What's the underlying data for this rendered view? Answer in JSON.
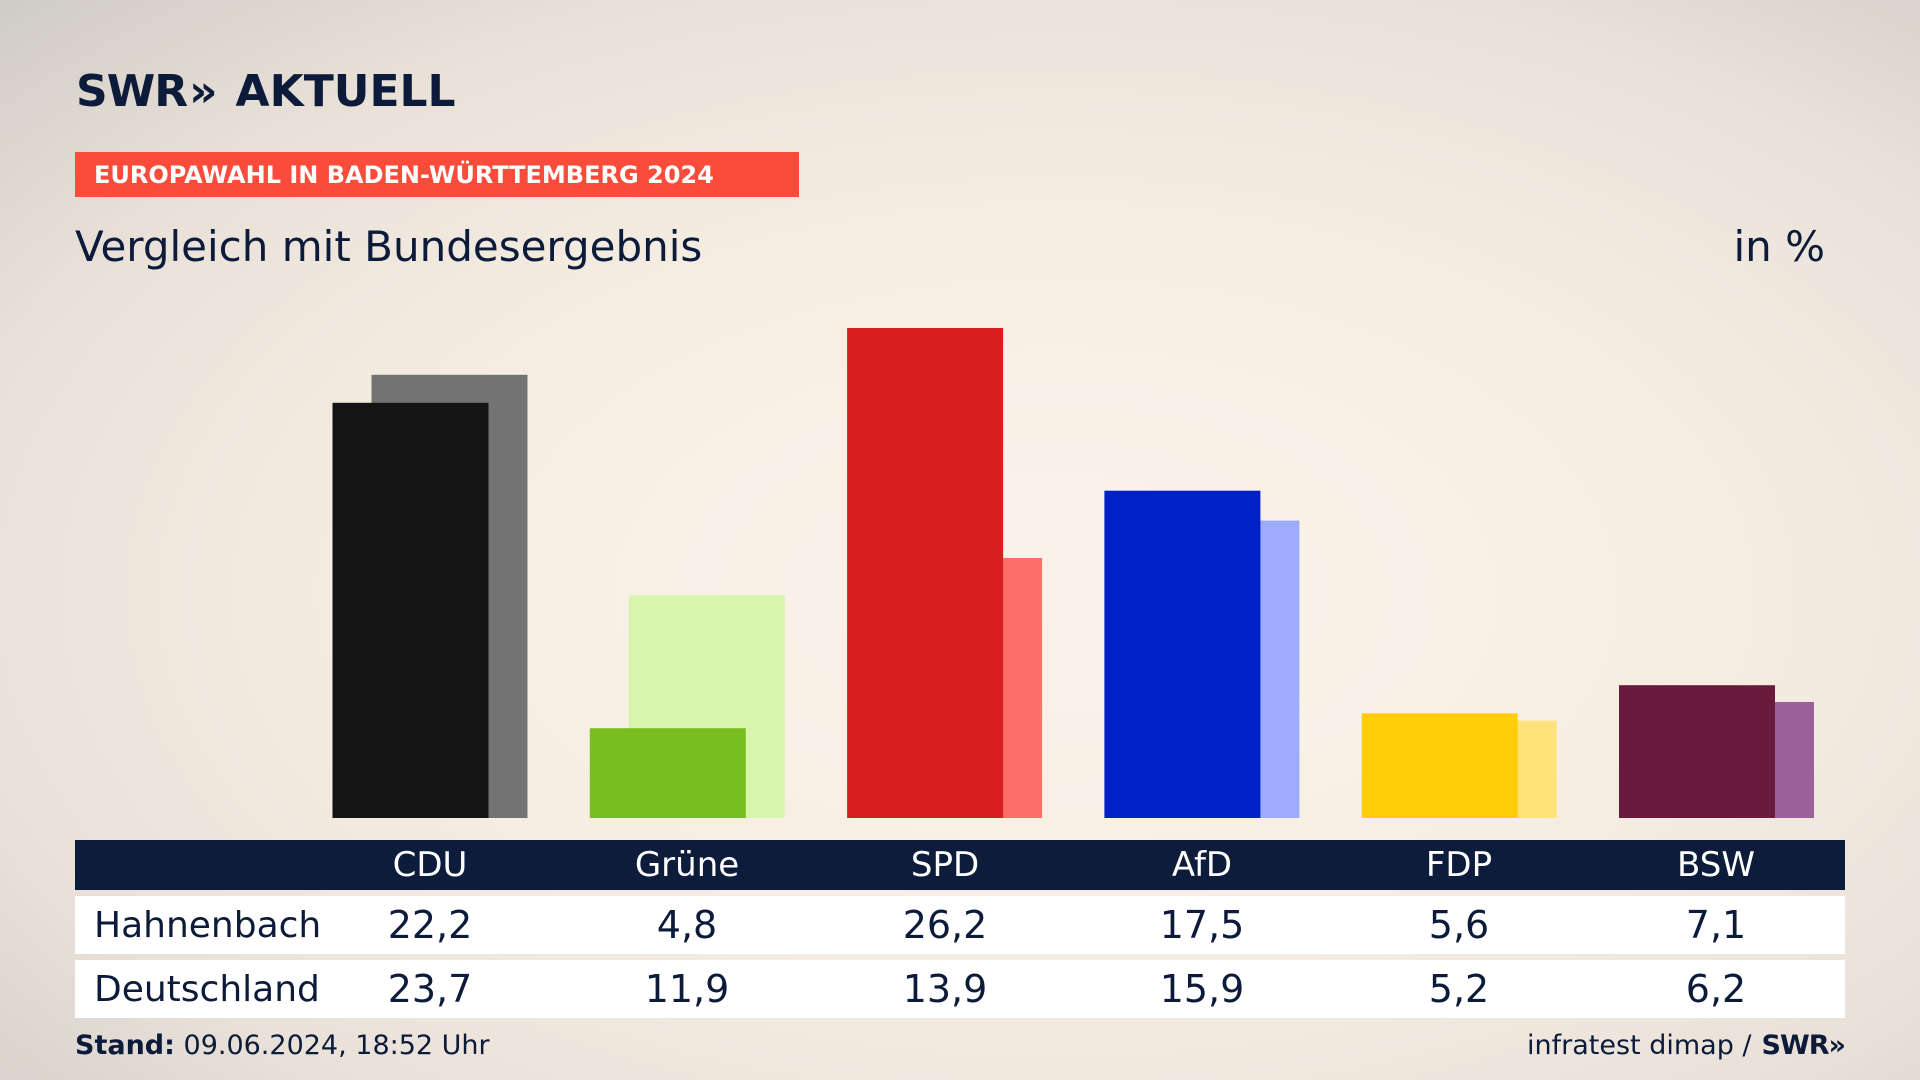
{
  "brand": {
    "logo_text": "SWR",
    "logo_chevrons": "»",
    "logo_suffix": "AKTUELL"
  },
  "banner": "EUROPAWAHL IN BADEN-WÜRTTEMBERG 2024",
  "subtitle": "Vergleich mit Bundesergebnis",
  "unit": "in %",
  "chart_data": {
    "type": "bar",
    "title": "Vergleich mit Bundesergebnis",
    "categories": [
      "CDU",
      "Grüne",
      "SPD",
      "AfD",
      "FDP",
      "BSW"
    ],
    "series": [
      {
        "name": "Hahnenbach",
        "values": [
          22.2,
          4.8,
          26.2,
          17.5,
          5.6,
          7.1
        ]
      },
      {
        "name": "Deutschland",
        "values": [
          23.7,
          11.9,
          13.9,
          15.9,
          5.2,
          6.2
        ]
      }
    ],
    "colors_primary": [
      "#141414",
      "#78be1e",
      "#d71f1f",
      "#0021c8",
      "#ffcd0a",
      "#6a1a3d"
    ],
    "colors_secondary": [
      "#737373",
      "#d8f5ad",
      "#ff6f6a",
      "#9eaafb",
      "#ffe27a",
      "#9b5f9a"
    ],
    "ylim": [
      0,
      26.2
    ],
    "grid": false
  },
  "table": {
    "headers": [
      "CDU",
      "Grüne",
      "SPD",
      "AfD",
      "FDP",
      "BSW"
    ],
    "rows": [
      {
        "label": "Hahnenbach",
        "values": [
          "22,2",
          "4,8",
          "26,2",
          "17,5",
          "5,6",
          "7,1"
        ]
      },
      {
        "label": "Deutschland",
        "values": [
          "23,7",
          "11,9",
          "13,9",
          "15,9",
          "5,2",
          "6,2"
        ]
      }
    ]
  },
  "footer": {
    "stand_label": "Stand:",
    "stand_value": "09.06.2024, 18:52 Uhr",
    "source": "infratest dimap /",
    "source_logo": "SWR»"
  }
}
